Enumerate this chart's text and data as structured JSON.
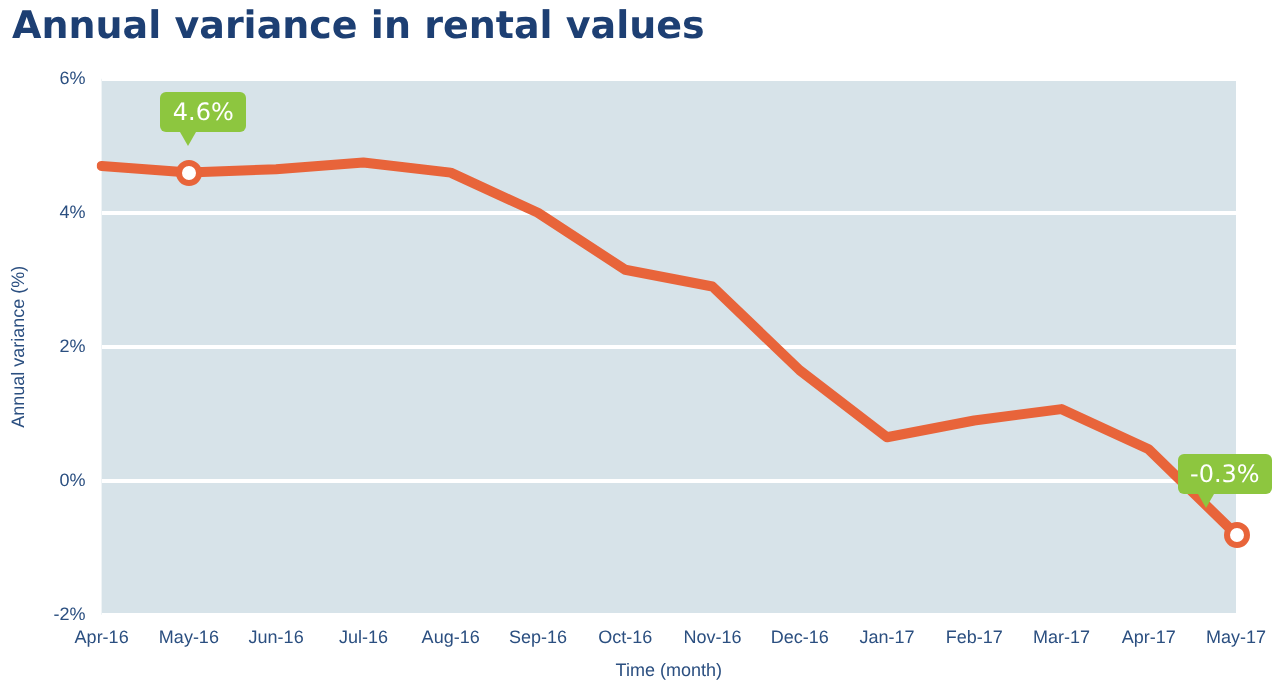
{
  "chart_data": {
    "type": "line",
    "title": "Annual variance in rental values",
    "xlabel": "Time (month)",
    "ylabel": "Annual variance (%)",
    "categories": [
      "Apr-16",
      "May-16",
      "Jun-16",
      "Jul-16",
      "Aug-16",
      "Sep-16",
      "Oct-16",
      "Nov-16",
      "Dec-16",
      "Jan-17",
      "Feb-17",
      "Mar-17",
      "Apr-17",
      "May-17"
    ],
    "series": [
      {
        "color": "#e8643a",
        "values": [
          4.7,
          4.6,
          4.65,
          4.75,
          4.6,
          4.0,
          3.15,
          2.9,
          1.65,
          0.65,
          0.9,
          1.07,
          0.47,
          -0.8
        ]
      }
    ],
    "annotations": [
      {
        "text": "4.6%",
        "x": "May-16",
        "y": 4.6
      },
      {
        "text": "-0.3%",
        "x": "May-17",
        "y": -0.8
      }
    ],
    "ylim": [
      -2,
      6
    ],
    "yticks": [
      {
        "value": -2,
        "label": "-2%"
      },
      {
        "value": 0,
        "label": "0%"
      },
      {
        "value": 2,
        "label": "2%"
      },
      {
        "value": 4,
        "label": "4%"
      },
      {
        "value": 6,
        "label": "6%"
      }
    ],
    "grid": "y",
    "legend": false,
    "line_style": "solid"
  }
}
